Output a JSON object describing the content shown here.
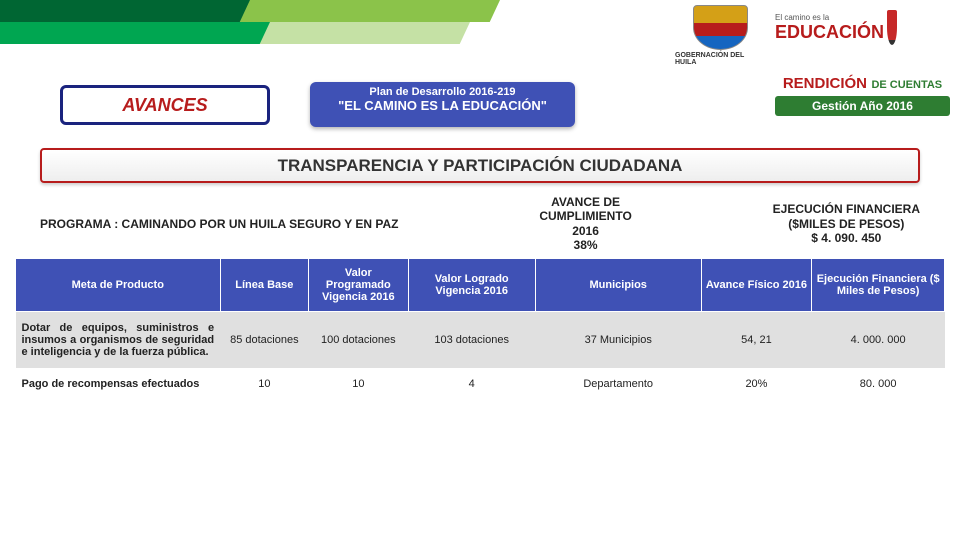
{
  "header": {
    "emblem_caption": "GOBERNACIÓN DEL HUILA",
    "edu_pre": "El camino es la",
    "edu_main": "EDUCACIÓN"
  },
  "avances": "AVANCES",
  "plan": {
    "line1": "Plan de Desarrollo 2016-219",
    "line2": "\"EL CAMINO ES LA EDUCACIÓN\""
  },
  "rendicion": {
    "title": "RENDICIÓN",
    "sub": "DE CUENTAS",
    "year": "Gestión Año 2016"
  },
  "main_title": "TRANSPARENCIA Y PARTICIPACIÓN CIUDADANA",
  "programa_label": "PROGRAMA : CAMINANDO POR UN HUILA SEGURO Y EN PAZ",
  "avance_cumpl": {
    "l1": "AVANCE DE",
    "l2": "CUMPLIMIENTO",
    "l3": "2016",
    "l4": "38%"
  },
  "ejec_fin": {
    "l1": "EJECUCIÓN FINANCIERA",
    "l2": "($MILES DE PESOS)",
    "l3": "$ 4. 090. 450"
  },
  "table": {
    "headers": {
      "c1": "Meta de Producto",
      "c2": "Línea Base",
      "c3": "Valor Programado Vigencia 2016",
      "c4": "Valor Logrado Vigencia 2016",
      "c5": "Municipios",
      "c6": "Avance Físico 2016",
      "c7": "Ejecución Financiera ($ Miles de Pesos)"
    },
    "rows": [
      {
        "meta": "Dotar de equipos, suministros e insumos a organismos de seguridad e inteligencia y de la fuerza pública.",
        "base": "85 dotaciones",
        "prog": "100 dotaciones",
        "logr": "103 dotaciones",
        "muni": "37 Municipios",
        "fis": "54, 21",
        "fin": "4. 000. 000"
      },
      {
        "meta": "Pago de recompensas efectuados",
        "base": "10",
        "prog": "10",
        "logr": "4",
        "muni": "Departamento",
        "fis": "20%",
        "fin": "80. 000"
      }
    ]
  },
  "colors": {
    "header_bg": "#3f51b5",
    "accent_red": "#b71c1c",
    "green_dark": "#2e7d32"
  }
}
